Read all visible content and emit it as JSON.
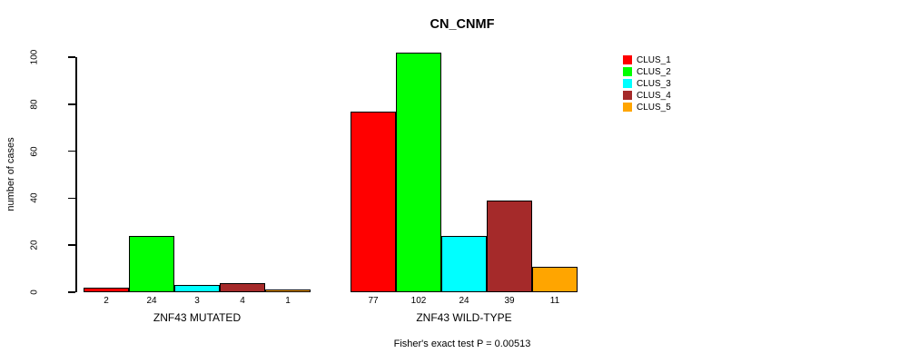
{
  "chart_data": {
    "type": "bar",
    "title": "CN_CNMF",
    "ylabel": "number of cases",
    "xlabel": "",
    "ylim": [
      0,
      100
    ],
    "yticks": [
      0,
      20,
      40,
      60,
      80,
      100
    ],
    "grid": false,
    "legend_position": "right",
    "series_names": [
      "CLUS_1",
      "CLUS_2",
      "CLUS_3",
      "CLUS_4",
      "CLUS_5"
    ],
    "series_colors": [
      "#ff0000",
      "#00ff00",
      "#00ffff",
      "#a52a2a",
      "#ffa500"
    ],
    "groups": [
      {
        "label": "ZNF43 MUTATED",
        "values": [
          2,
          24,
          3,
          4,
          1
        ]
      },
      {
        "label": "ZNF43 WILD-TYPE",
        "values": [
          77,
          102,
          24,
          39,
          11
        ]
      }
    ],
    "bar_value_labels_shown": true,
    "annotation": "Fisher's exact test P = 0.00513"
  }
}
